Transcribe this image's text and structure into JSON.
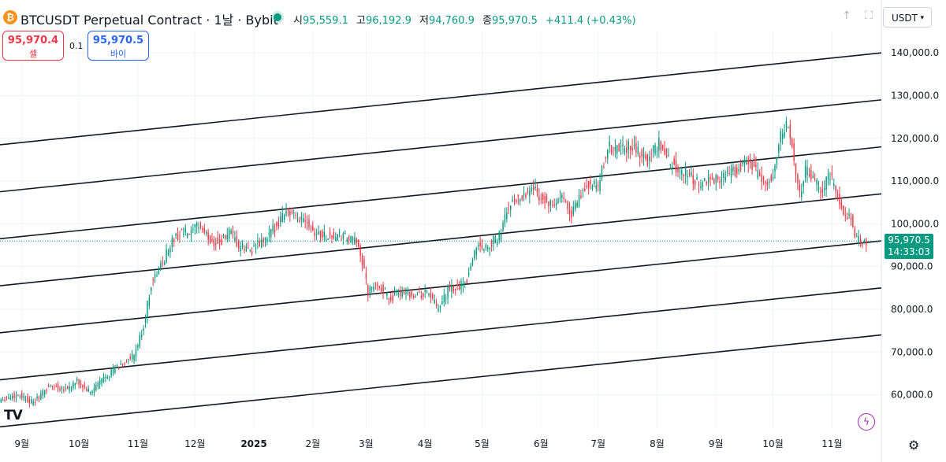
{
  "header": {
    "symbol_icon": "bitcoin-icon",
    "title": "BTCUSDT Perpetual Contract · 1날 · Bybit",
    "open_label": "시",
    "open": "95,559.1",
    "high_label": "고",
    "high": "96,192.9",
    "low_label": "저",
    "low": "94,760.9",
    "close_label": "종",
    "close": "95,970.5",
    "change": "+411.4 (+0.43%)",
    "currency": "USDT",
    "currency_icon": "chevron-down-icon"
  },
  "trade": {
    "sell_price": "95,970.4",
    "sell_label": "셀",
    "spread": "0.1",
    "buy_price": "95,970.5",
    "buy_label": "바이"
  },
  "last_price": {
    "value": "95,970.5",
    "countdown": "14:33:03"
  },
  "colors": {
    "up": "#089981",
    "down": "#f23645",
    "line": "#131722",
    "grid": "#f0f3fa",
    "last": "#089981"
  },
  "chart_data": {
    "type": "candlestick",
    "x_labels": [
      "9월",
      "10월",
      "11월",
      "12월",
      "2025",
      "2월",
      "3월",
      "4월",
      "5월",
      "6월",
      "7월",
      "8월",
      "9월",
      "10월",
      "11월"
    ],
    "x_label_index": [
      11,
      41,
      72,
      102,
      133,
      164,
      192,
      223,
      253,
      284,
      314,
      345,
      376,
      406,
      437
    ],
    "y_ticks": [
      60000,
      70000,
      80000,
      90000,
      100000,
      110000,
      120000,
      130000,
      140000
    ],
    "y_tick_labels": [
      "60,000.0",
      "70,000.0",
      "80,000.0",
      "90,000.0",
      "100,000.0",
      "110,000.0",
      "120,000.0",
      "130,000.0",
      "140,000.0"
    ],
    "y_range": [
      52000,
      145000
    ],
    "last_close": 95970.5,
    "channel_lines": [
      {
        "start": 118500,
        "end": 140000
      },
      {
        "start": 107500,
        "end": 129000
      },
      {
        "start": 96500,
        "end": 118000
      },
      {
        "start": 85500,
        "end": 107000
      },
      {
        "start": 74500,
        "end": 96000
      },
      {
        "start": 63500,
        "end": 85000
      },
      {
        "start": 52500,
        "end": 74000
      }
    ],
    "closes_key": [
      [
        0,
        59000
      ],
      [
        10,
        60000
      ],
      [
        17,
        58000
      ],
      [
        25,
        62000
      ],
      [
        35,
        61500
      ],
      [
        40,
        63000
      ],
      [
        47,
        60500
      ],
      [
        55,
        64500
      ],
      [
        63,
        67000
      ],
      [
        70,
        69000
      ],
      [
        75,
        76000
      ],
      [
        79,
        86000
      ],
      [
        85,
        91000
      ],
      [
        90,
        96000
      ],
      [
        95,
        98000
      ],
      [
        100,
        97500
      ],
      [
        104,
        100000
      ],
      [
        110,
        96000
      ],
      [
        115,
        95500
      ],
      [
        120,
        98000
      ],
      [
        125,
        94500
      ],
      [
        132,
        94000
      ],
      [
        140,
        96500
      ],
      [
        150,
        103500
      ],
      [
        155,
        101000
      ],
      [
        160,
        101500
      ],
      [
        165,
        98000
      ],
      [
        172,
        97000
      ],
      [
        180,
        97000
      ],
      [
        188,
        95500
      ],
      [
        193,
        84000
      ],
      [
        198,
        86000
      ],
      [
        205,
        82500
      ],
      [
        212,
        84500
      ],
      [
        218,
        83000
      ],
      [
        225,
        84000
      ],
      [
        230,
        79500
      ],
      [
        235,
        84500
      ],
      [
        240,
        85000
      ],
      [
        245,
        87000
      ],
      [
        250,
        95000
      ],
      [
        255,
        94500
      ],
      [
        262,
        97000
      ],
      [
        267,
        104000
      ],
      [
        272,
        106000
      ],
      [
        280,
        108500
      ],
      [
        285,
        105500
      ],
      [
        290,
        104000
      ],
      [
        295,
        106000
      ],
      [
        300,
        102500
      ],
      [
        308,
        109000
      ],
      [
        314,
        108500
      ],
      [
        319,
        118000
      ],
      [
        325,
        117500
      ],
      [
        332,
        118000
      ],
      [
        340,
        115000
      ],
      [
        346,
        119000
      ],
      [
        350,
        115500
      ],
      [
        355,
        113000
      ],
      [
        362,
        111500
      ],
      [
        368,
        109000
      ],
      [
        374,
        110500
      ],
      [
        380,
        111000
      ],
      [
        386,
        112500
      ],
      [
        392,
        115000
      ],
      [
        397,
        112000
      ],
      [
        402,
        109500
      ],
      [
        406,
        111500
      ],
      [
        410,
        121000
      ],
      [
        414,
        123500
      ],
      [
        418,
        112000
      ],
      [
        420,
        107000
      ],
      [
        423,
        112500
      ],
      [
        428,
        109500
      ],
      [
        432,
        108000
      ],
      [
        436,
        111500
      ],
      [
        440,
        106000
      ],
      [
        443,
        103000
      ],
      [
        447,
        101500
      ],
      [
        450,
        96000
      ],
      [
        453,
        95970
      ]
    ]
  }
}
